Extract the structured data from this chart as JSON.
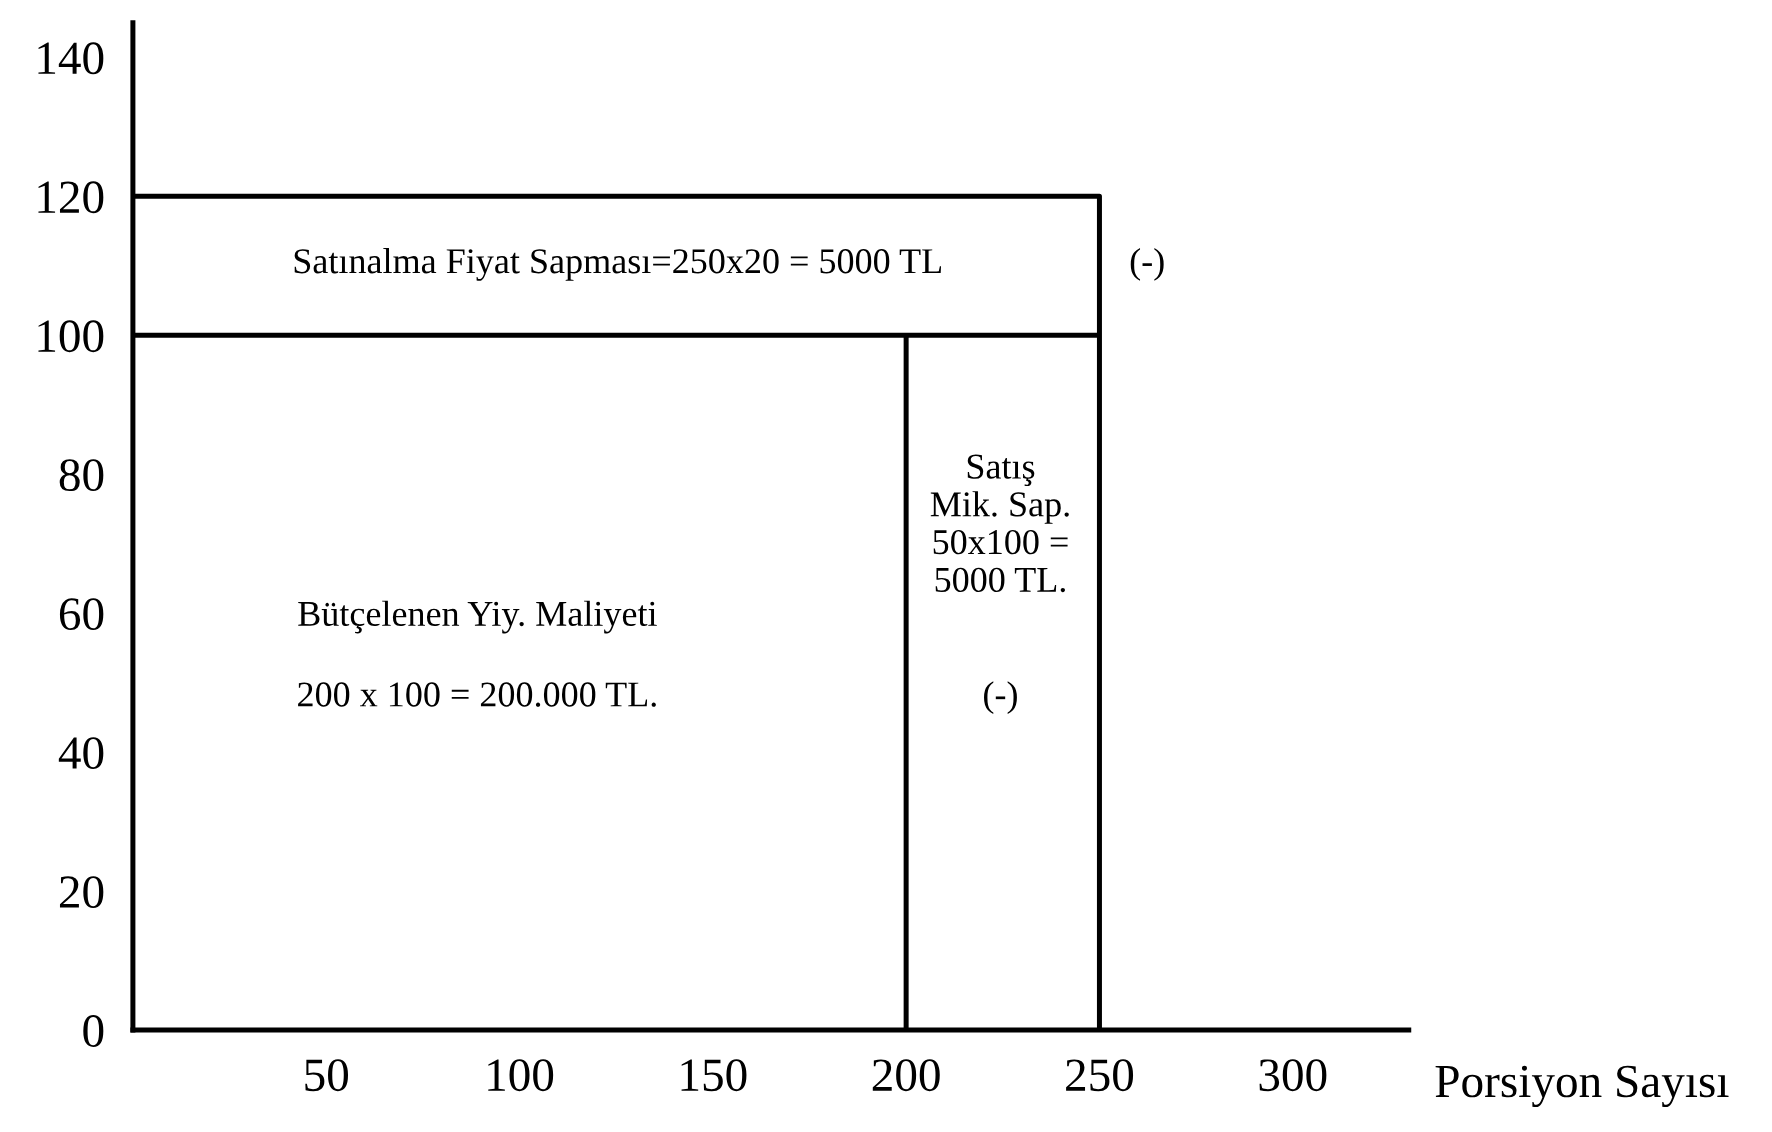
{
  "chart_data": {
    "type": "line",
    "xlabel": "Porsiyon Sayısı",
    "xlim": [
      0,
      330
    ],
    "ylim": [
      0,
      145
    ],
    "xticks": [
      50,
      100,
      150,
      200,
      250,
      300
    ],
    "yticks": [
      0,
      20,
      40,
      60,
      80,
      100,
      120,
      140
    ],
    "grid": false,
    "legend": false,
    "marker": "none",
    "line_style": "solid",
    "series": [
      {
        "color": "#000000",
        "x": [
          0,
          250,
          250
        ],
        "values": [
          120,
          120,
          0
        ]
      },
      {
        "color": "#000000",
        "x": [
          0,
          250
        ],
        "values": [
          100,
          100
        ]
      },
      {
        "color": "#000000",
        "x": [
          200,
          200
        ],
        "values": [
          0,
          100
        ]
      }
    ],
    "annotations": [
      "Satınalma Fiyat Sapması=250x20 = 5000 TL",
      "(-)",
      "Satış\nMik. Sap.\n50x100 =\n5000 TL.",
      "(-)",
      "Bütçelenen Yiy. Maliyeti",
      "200 x 100 = 200.000 TL."
    ]
  }
}
